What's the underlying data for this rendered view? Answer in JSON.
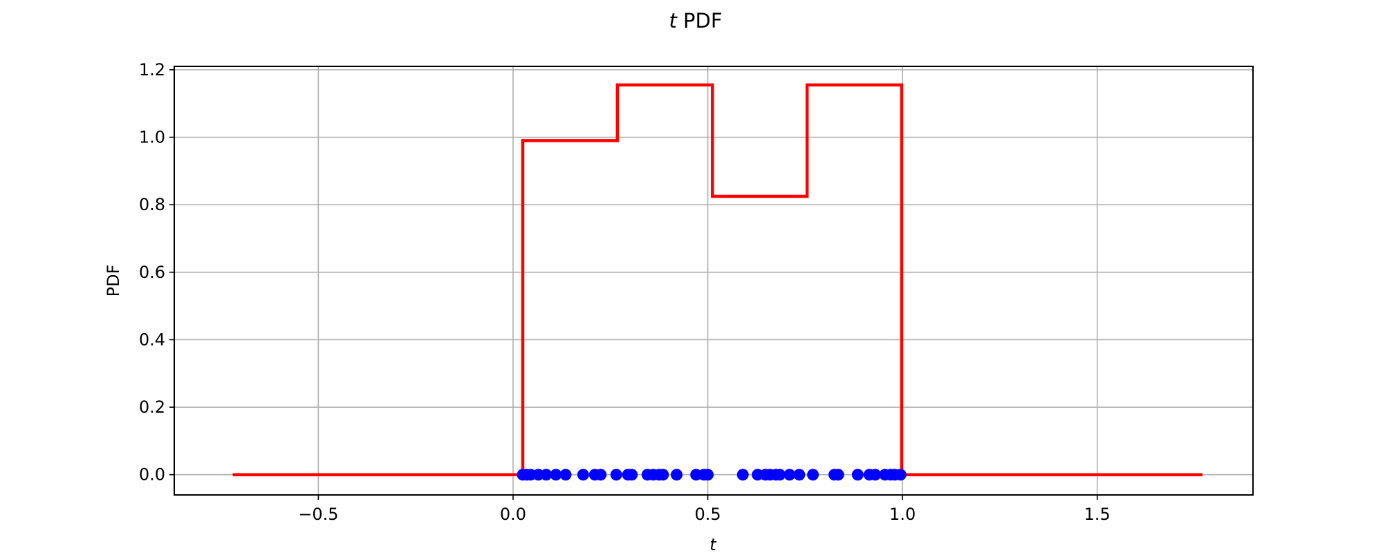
{
  "chart_data": {
    "type": "line",
    "title_var": "t",
    "title_rest": " PDF",
    "xlabel": "t",
    "ylabel": "PDF",
    "xlim": [
      -0.87,
      1.9
    ],
    "ylim": [
      -0.06,
      1.21
    ],
    "grid": true,
    "x_ticks": [
      -0.5,
      0.0,
      0.5,
      1.0,
      1.5
    ],
    "x_tick_labels": [
      "−0.5",
      "0.0",
      "0.5",
      "1.0",
      "1.5"
    ],
    "y_ticks": [
      0.0,
      0.2,
      0.4,
      0.6,
      0.8,
      1.0,
      1.2
    ],
    "y_tick_labels": [
      "0.0",
      "0.2",
      "0.4",
      "0.6",
      "0.8",
      "1.0",
      "1.2"
    ],
    "series": [
      {
        "kind": "step",
        "color": "#ff0000",
        "x": [
          -0.72,
          0.025,
          0.025,
          0.268,
          0.268,
          0.512,
          0.512,
          0.755,
          0.755,
          0.998,
          0.998,
          1.77
        ],
        "y": [
          0.0,
          0.0,
          0.99,
          0.99,
          1.155,
          1.155,
          0.825,
          0.825,
          1.155,
          1.155,
          0.0,
          0.0
        ]
      },
      {
        "kind": "scatter",
        "color": "#0000ff",
        "x": [
          0.025,
          0.035,
          0.045,
          0.065,
          0.085,
          0.11,
          0.135,
          0.18,
          0.21,
          0.225,
          0.265,
          0.295,
          0.305,
          0.345,
          0.36,
          0.375,
          0.385,
          0.42,
          0.47,
          0.49,
          0.5,
          0.59,
          0.628,
          0.648,
          0.66,
          0.675,
          0.685,
          0.71,
          0.735,
          0.77,
          0.825,
          0.835,
          0.885,
          0.915,
          0.93,
          0.955,
          0.97,
          0.98,
          0.995
        ],
        "y": [
          0,
          0,
          0,
          0,
          0,
          0,
          0,
          0,
          0,
          0,
          0,
          0,
          0,
          0,
          0,
          0,
          0,
          0,
          0,
          0,
          0,
          0,
          0,
          0,
          0,
          0,
          0,
          0,
          0,
          0,
          0,
          0,
          0,
          0,
          0,
          0,
          0,
          0,
          0
        ]
      }
    ]
  }
}
